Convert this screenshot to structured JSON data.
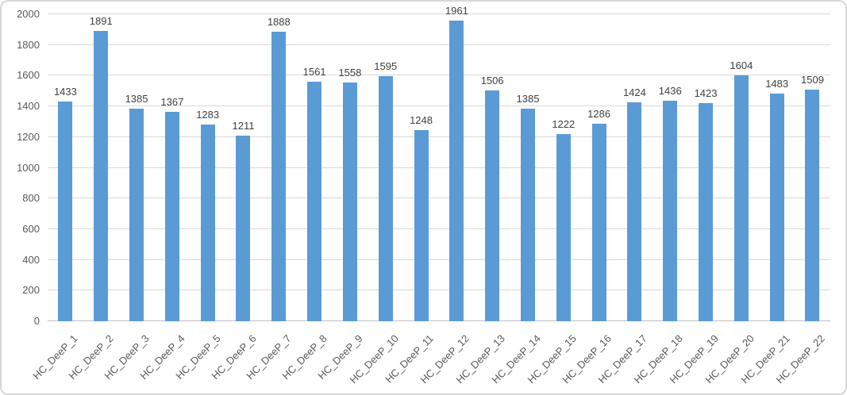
{
  "chart_data": {
    "type": "bar",
    "title": "",
    "xlabel": "",
    "ylabel": "",
    "categories": [
      "HC_DeeP_1",
      "HC_DeeP_2",
      "HC_DeeP_3",
      "HC_DeeP_4",
      "HC_DeeP_5",
      "HC_DeeP_6",
      "HC_DeeP_7",
      "HC_DeeP_8",
      "HC_DeeP_9",
      "HC_DeeP_10",
      "HC_DeeP_11",
      "HC_DeeP_12",
      "HC_DeeP_13",
      "HC_DeeP_14",
      "HC_DeeP_15",
      "HC_DeeP_16",
      "HC_DeeP_17",
      "HC_DeeP_18",
      "HC_DeeP_19",
      "HC_DeeP_20",
      "HC_DeeP_21",
      "HC_DeeP_22"
    ],
    "values": [
      1433,
      1891,
      1385,
      1367,
      1283,
      1211,
      1888,
      1561,
      1558,
      1595,
      1248,
      1961,
      1506,
      1385,
      1222,
      1286,
      1424,
      1436,
      1423,
      1604,
      1483,
      1509
    ],
    "data_labels_visible": true,
    "ylim": [
      0,
      2000
    ],
    "yticks": [
      0,
      200,
      400,
      600,
      800,
      1000,
      1200,
      1400,
      1600,
      1800,
      2000
    ],
    "grid": true,
    "legend_visible": false,
    "x_labels_rotation_deg": -45,
    "colors": {
      "bar_fill": "#5b9bd5",
      "gridline": "#d9d9d9",
      "axis_line": "#bfbfbf",
      "value_label_text": "#404040",
      "axis_tick_text": "#595959",
      "frame_border": "#d7d7d7",
      "background": "#ffffff"
    }
  }
}
